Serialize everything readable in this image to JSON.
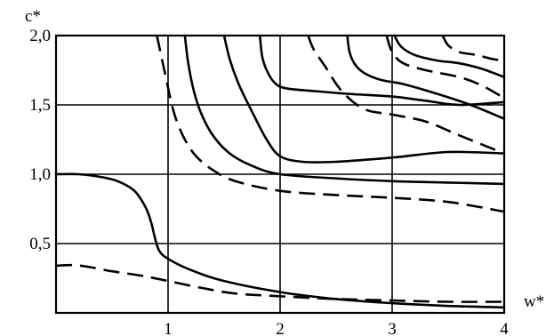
{
  "chart_data": {
    "type": "line",
    "xlabel": "w*",
    "ylabel": "c*",
    "xlim": [
      0,
      4
    ],
    "ylim": [
      0,
      2.0
    ],
    "x_ticks": [
      {
        "value": 1,
        "label": "1"
      },
      {
        "value": 2,
        "label": "2"
      },
      {
        "value": 3,
        "label": "3"
      },
      {
        "value": 4,
        "label": "4"
      }
    ],
    "y_ticks": [
      {
        "value": 0.5,
        "label": "0,5"
      },
      {
        "value": 1.0,
        "label": "1,0"
      },
      {
        "value": 1.5,
        "label": "1,5"
      },
      {
        "value": 2.0,
        "label": "2,0"
      }
    ],
    "grid": true,
    "series": [
      {
        "style": "solid",
        "points": [
          [
            0,
            1.0
          ],
          [
            0.2,
            1.0
          ],
          [
            0.4,
            0.98
          ],
          [
            0.55,
            0.95
          ],
          [
            0.7,
            0.88
          ],
          [
            0.8,
            0.76
          ],
          [
            0.85,
            0.65
          ],
          [
            0.88,
            0.55
          ],
          [
            0.92,
            0.45
          ],
          [
            1.0,
            0.39
          ],
          [
            1.2,
            0.31
          ],
          [
            1.5,
            0.23
          ],
          [
            2.0,
            0.15
          ],
          [
            2.5,
            0.1
          ],
          [
            3.0,
            0.07
          ],
          [
            3.5,
            0.05
          ],
          [
            4.0,
            0.04
          ]
        ]
      },
      {
        "style": "dashed",
        "points": [
          [
            0,
            0.34
          ],
          [
            0.15,
            0.345
          ],
          [
            0.3,
            0.33
          ],
          [
            0.5,
            0.3
          ],
          [
            0.75,
            0.27
          ],
          [
            1.0,
            0.23
          ],
          [
            1.3,
            0.18
          ],
          [
            1.6,
            0.14
          ],
          [
            2.0,
            0.12
          ],
          [
            2.5,
            0.1
          ],
          [
            3.0,
            0.09
          ],
          [
            3.5,
            0.08
          ],
          [
            4.0,
            0.08
          ]
        ]
      },
      {
        "style": "dashed",
        "points": [
          [
            0.9,
            2.0
          ],
          [
            0.94,
            1.85
          ],
          [
            0.98,
            1.7
          ],
          [
            1.02,
            1.55
          ],
          [
            1.07,
            1.4
          ],
          [
            1.15,
            1.25
          ],
          [
            1.25,
            1.13
          ],
          [
            1.4,
            1.03
          ],
          [
            1.6,
            0.95
          ],
          [
            2.0,
            0.88
          ],
          [
            2.5,
            0.85
          ],
          [
            3.0,
            0.83
          ],
          [
            3.5,
            0.8
          ],
          [
            4.0,
            0.73
          ]
        ]
      },
      {
        "style": "solid",
        "points": [
          [
            1.15,
            2.0
          ],
          [
            1.18,
            1.8
          ],
          [
            1.23,
            1.6
          ],
          [
            1.3,
            1.43
          ],
          [
            1.4,
            1.28
          ],
          [
            1.55,
            1.15
          ],
          [
            1.75,
            1.06
          ],
          [
            2.0,
            1.0
          ],
          [
            2.5,
            0.97
          ],
          [
            3.0,
            0.95
          ],
          [
            3.5,
            0.94
          ],
          [
            4.0,
            0.93
          ]
        ]
      },
      {
        "style": "solid",
        "points": [
          [
            1.5,
            2.0
          ],
          [
            1.55,
            1.83
          ],
          [
            1.63,
            1.65
          ],
          [
            1.75,
            1.45
          ],
          [
            1.88,
            1.25
          ],
          [
            2.0,
            1.13
          ],
          [
            2.2,
            1.09
          ],
          [
            2.5,
            1.09
          ],
          [
            3.0,
            1.12
          ],
          [
            3.5,
            1.16
          ],
          [
            4.0,
            1.15
          ]
        ]
      },
      {
        "style": "solid",
        "points": [
          [
            1.82,
            2.0
          ],
          [
            1.84,
            1.85
          ],
          [
            1.88,
            1.75
          ],
          [
            1.95,
            1.66
          ],
          [
            2.05,
            1.62
          ],
          [
            2.3,
            1.6
          ],
          [
            2.6,
            1.58
          ],
          [
            3.0,
            1.56
          ],
          [
            3.3,
            1.53
          ],
          [
            3.6,
            1.5
          ],
          [
            4.0,
            1.52
          ]
        ]
      },
      {
        "style": "dashed",
        "points": [
          [
            2.25,
            2.0
          ],
          [
            2.3,
            1.9
          ],
          [
            2.4,
            1.78
          ],
          [
            2.55,
            1.6
          ],
          [
            2.75,
            1.47
          ],
          [
            3.0,
            1.43
          ],
          [
            3.3,
            1.38
          ],
          [
            3.6,
            1.28
          ],
          [
            4.0,
            1.15
          ]
        ]
      },
      {
        "style": "solid",
        "points": [
          [
            2.6,
            2.0
          ],
          [
            2.62,
            1.88
          ],
          [
            2.67,
            1.79
          ],
          [
            2.75,
            1.73
          ],
          [
            2.9,
            1.68
          ],
          [
            3.1,
            1.65
          ],
          [
            3.4,
            1.58
          ],
          [
            3.7,
            1.5
          ],
          [
            4.0,
            1.4
          ]
        ]
      },
      {
        "style": "dashed",
        "points": [
          [
            2.95,
            2.0
          ],
          [
            3.0,
            1.88
          ],
          [
            3.1,
            1.8
          ],
          [
            3.3,
            1.75
          ],
          [
            3.6,
            1.7
          ],
          [
            3.8,
            1.64
          ],
          [
            4.0,
            1.55
          ]
        ]
      },
      {
        "style": "solid",
        "points": [
          [
            3.02,
            2.0
          ],
          [
            3.08,
            1.92
          ],
          [
            3.2,
            1.86
          ],
          [
            3.4,
            1.82
          ],
          [
            3.6,
            1.8
          ],
          [
            3.8,
            1.76
          ],
          [
            4.0,
            1.7
          ]
        ]
      },
      {
        "style": "dashed",
        "points": [
          [
            3.45,
            2.0
          ],
          [
            3.5,
            1.93
          ],
          [
            3.6,
            1.88
          ],
          [
            3.75,
            1.86
          ],
          [
            3.9,
            1.83
          ],
          [
            4.0,
            1.82
          ]
        ]
      }
    ]
  }
}
